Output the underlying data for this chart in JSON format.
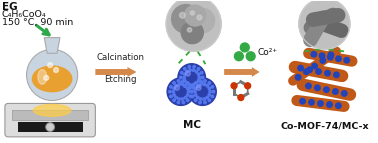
{
  "bg_color": "#ffffff",
  "text_eg": "EG",
  "text_formula": "C₄H₆CoO₄",
  "text_conditions": "150 °C, 90 min",
  "text_calcination": "Calcination",
  "text_etching": "Etching",
  "text_mc": "MC",
  "text_co2": "Co²⁺",
  "text_product": "Co-MOF-74/MC-x",
  "orange_arrow": "#d4884a",
  "green_color": "#2da84a",
  "blue_dark": "#2233aa",
  "blue_sphere": "#2a3faa",
  "blue_dot": "#3355cc",
  "co_green": "#33aa44",
  "rod_color": "#c05818",
  "rod_dot": "#2244bb",
  "flask_glass": "#c8d4e0",
  "flask_liquid": "#e8a030",
  "hot_glow": "#ffcc44",
  "plate_color": "#dddddd",
  "plate_edge": "#999999",
  "linker_red": "#cc3300",
  "linker_gray": "#777777",
  "dashed_green": "#33aa33",
  "tem_bg": "#c0c0c0",
  "tem_sphere1": "#888888",
  "tem_sphere2": "#aaaaaa",
  "tem_dark": "#606060"
}
